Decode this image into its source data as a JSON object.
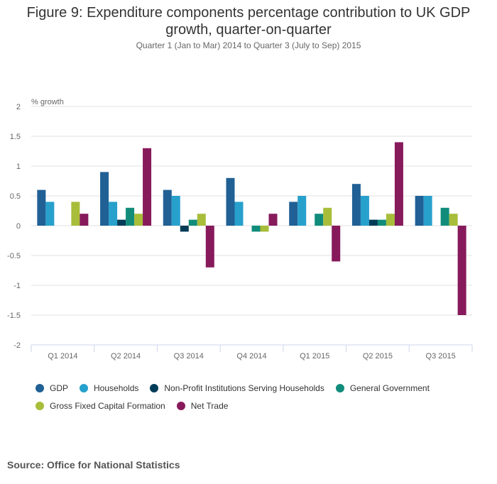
{
  "chart_data": {
    "type": "bar",
    "title": "Figure 9: Expenditure components percentage contribution to UK GDP growth, quarter-on-quarter",
    "title_lines": [
      "Figure 9: Expenditure components percentage contribution to UK GDP",
      "growth, quarter-on-quarter"
    ],
    "subtitle": "Quarter 1 (Jan to Mar) 2014 to Quarter 3 (July to Sep) 2015",
    "xlabel": "",
    "ylabel": "% growth",
    "ylim": [
      -2,
      2
    ],
    "yticks": [
      2,
      1.5,
      1,
      0.5,
      0,
      -0.5,
      -1,
      -1.5,
      -2
    ],
    "ytick_labels": [
      "2",
      "1.5",
      "1",
      "0.5",
      "0",
      "-0.5",
      "-1",
      "-1.5",
      "-2"
    ],
    "grid": true,
    "legend_position": "bottom",
    "categories": [
      "Q1 2014",
      "Q2 2014",
      "Q3 2014",
      "Q4 2014",
      "Q1 2015",
      "Q2 2015",
      "Q3 2015"
    ],
    "series": [
      {
        "name": "GDP",
        "color": "#206095",
        "values": [
          0.6,
          0.9,
          0.6,
          0.8,
          0.4,
          0.7,
          0.5
        ]
      },
      {
        "name": "Households",
        "color": "#27a0cc",
        "values": [
          0.4,
          0.4,
          0.5,
          0.4,
          0.5,
          0.5,
          0.5
        ]
      },
      {
        "name": "Non-Profit Institutions Serving Households",
        "color": "#003c57",
        "values": [
          0,
          0.1,
          -0.1,
          0,
          0,
          0.1,
          0
        ]
      },
      {
        "name": "General Government",
        "color": "#118c7b",
        "values": [
          0,
          0.3,
          0.1,
          -0.1,
          0.2,
          0.1,
          0.3
        ]
      },
      {
        "name": "Gross Fixed Capital Formation",
        "color": "#a8bd3a",
        "values": [
          0.4,
          0.2,
          0.2,
          -0.1,
          0.3,
          0.2,
          0.2
        ]
      },
      {
        "name": "Net Trade",
        "color": "#871a5b",
        "values": [
          0.2,
          1.3,
          -0.7,
          0.2,
          -0.6,
          1.4,
          -1.5
        ]
      }
    ]
  },
  "source": "Source: Office for National Statistics"
}
